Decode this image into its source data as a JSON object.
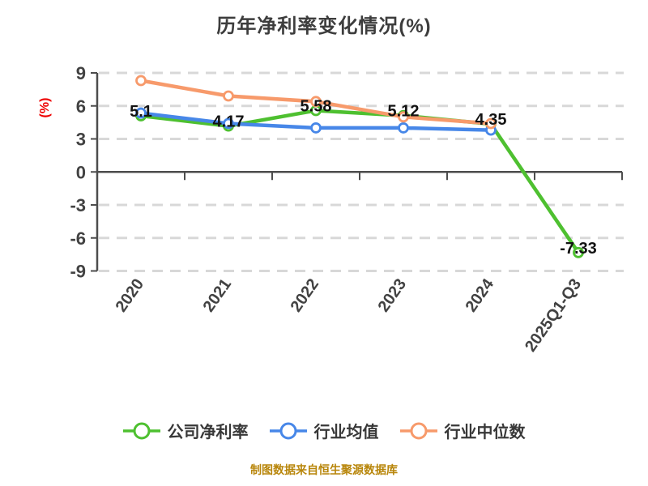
{
  "title": "历年净利率变化情况(%)",
  "footer": {
    "text": "制图数据来自恒生聚源数据库",
    "color": "#b8860b"
  },
  "chart_data": {
    "type": "line",
    "title": "历年净利率变化情况(%)",
    "ylabel": "(%)",
    "ylabel_color": "#ee0000",
    "categories": [
      "2020",
      "2021",
      "2022",
      "2023",
      "2024",
      "2025Q1-Q3"
    ],
    "series": [
      {
        "id": "company",
        "name": "公司净利率",
        "color": "#4ec030",
        "values": [
          5.1,
          4.17,
          5.58,
          5.12,
          4.35,
          -7.33
        ],
        "labels": [
          "5.1",
          "4.17",
          "5.58",
          "5.12",
          "4.35",
          "-7.33"
        ]
      },
      {
        "id": "industry-avg",
        "name": "行业均值",
        "color": "#4787e8",
        "values": [
          5.35,
          4.4,
          4.0,
          4.0,
          3.8,
          null
        ],
        "labels": null
      },
      {
        "id": "industry-median",
        "name": "行业中位数",
        "color": "#f79a6b",
        "values": [
          8.3,
          6.9,
          6.4,
          5.0,
          4.4,
          null
        ],
        "labels": null
      }
    ],
    "ylim": [
      -9,
      9
    ],
    "yticks": [
      9,
      6,
      3,
      0,
      -3,
      -6,
      -9
    ],
    "grid": "horizontal-dashed",
    "grid_color": "#d8d8d8",
    "axis_color": "#4d4d4d",
    "tick_label_color": "#424242",
    "data_label_color": "#121212",
    "legend_position": "bottom",
    "x_tick_rotation_deg": -55
  }
}
